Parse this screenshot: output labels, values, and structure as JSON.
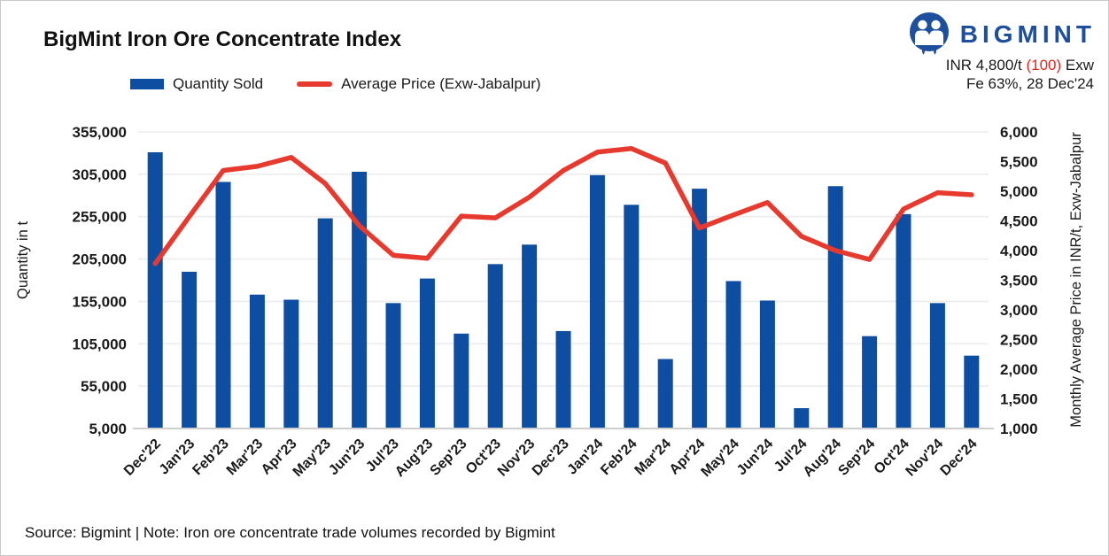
{
  "header": {
    "title": "BigMint Iron Ore Concentrate Index",
    "brand_name": "BIGMINT",
    "index_price_prefix": "INR 4,800/t ",
    "index_price_change": "(100)",
    "index_price_suffix": " Exw",
    "index_date_line": "Fe 63%, 28 Dec'24"
  },
  "legend": {
    "bar_label": "Quantity Sold",
    "line_label": "Average Price (Exw-Jabalpur)"
  },
  "footer": {
    "source_note": "Source: Bigmint | Note: Iron ore concentrate trade volumes recorded by Bigmint"
  },
  "colors": {
    "bar": "#0d4ea3",
    "line": "#e8392e",
    "logo_blue": "#1d4f9e",
    "change_red": "#e8251d",
    "grid": "#ececec",
    "axis": "#cfcfcf",
    "text": "#1a1a1a"
  },
  "chart_data": {
    "type": "bar",
    "title": "BigMint Iron Ore Concentrate Index",
    "categories": [
      "Dec'22",
      "Jan'23",
      "Feb'23",
      "Mar'23",
      "Apr'23",
      "May'23",
      "Jun'23",
      "Jul'23",
      "Aug'23",
      "Sep'23",
      "Oct'23",
      "Nov'23",
      "Dec'23",
      "Jan'24",
      "Feb'24",
      "Mar'24",
      "Apr'24",
      "May'24",
      "Jun'24",
      "Jul'24",
      "Aug'24",
      "Sep'24",
      "Oct'24",
      "Nov'24",
      "Dec'24"
    ],
    "series": [
      {
        "name": "Quantity Sold",
        "type": "bar",
        "axis": "left",
        "values": [
          331000,
          190000,
          296000,
          163000,
          157000,
          253000,
          308000,
          153000,
          182000,
          117000,
          199000,
          222000,
          120000,
          304000,
          269000,
          87000,
          288000,
          179000,
          156000,
          29000,
          291000,
          114000,
          258000,
          153000,
          91000
        ]
      },
      {
        "name": "Average Price (Exw-Jabalpur)",
        "type": "line",
        "axis": "right",
        "values": [
          3780,
          4570,
          5350,
          5420,
          5570,
          5130,
          4420,
          3920,
          3870,
          4580,
          4550,
          4900,
          5350,
          5660,
          5720,
          5475,
          4380,
          4600,
          4810,
          4240,
          4000,
          3850,
          4700,
          4975,
          4940
        ]
      }
    ],
    "left_axis": {
      "label": "Quantity in t",
      "min": 5000,
      "max": 355000,
      "tick_step": 50000,
      "ticks": [
        355000,
        305000,
        255000,
        205000,
        155000,
        105000,
        55000,
        5000
      ],
      "tick_labels": [
        "355,000",
        "305,000",
        "255,000",
        "205,000",
        "155,000",
        "105,000",
        "55,000",
        "5,000"
      ]
    },
    "right_axis": {
      "label": "Monthly Average Price in INR/t, Exw-Jabalpur",
      "min": 1000,
      "max": 6000,
      "tick_step": 500,
      "ticks": [
        6000,
        5500,
        5000,
        4500,
        4000,
        3500,
        3000,
        2500,
        2000,
        1500,
        1000
      ],
      "tick_labels": [
        "6,000",
        "5,500",
        "5,000",
        "4,500",
        "4,000",
        "3,500",
        "3,000",
        "2,500",
        "2,000",
        "1,500",
        "1,000"
      ]
    },
    "grid": "horizontal-only",
    "legend_position": "top-left"
  }
}
